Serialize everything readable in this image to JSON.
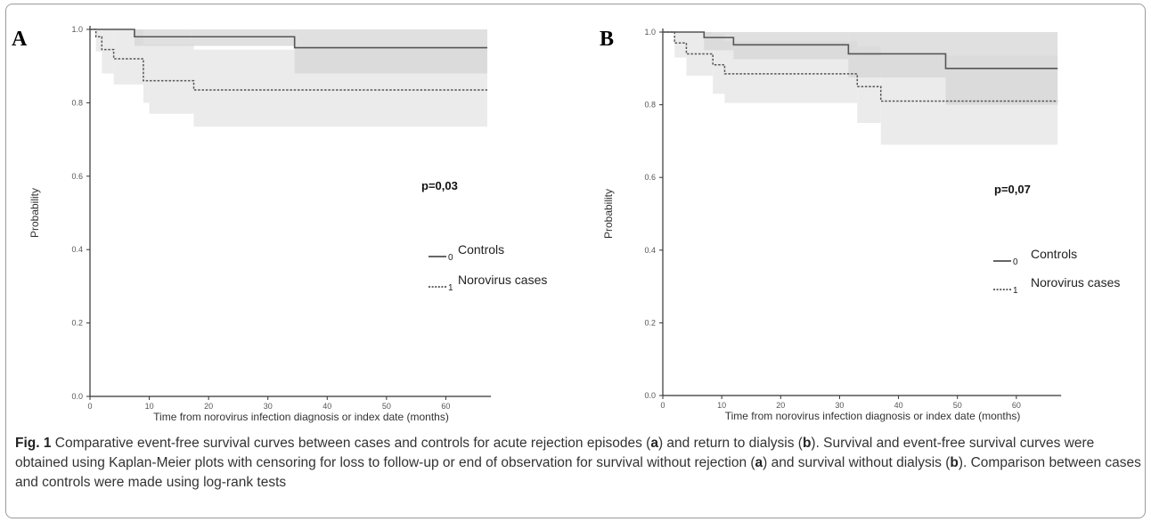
{
  "chart_data": [
    {
      "type": "line",
      "panel_label": "A",
      "xlabel": "Time from norovirus infection diagnosis or index date (months)",
      "ylabel": "Probability",
      "xlim": [
        0,
        70
      ],
      "ylim": [
        0,
        1
      ],
      "x_ticks": [
        "0",
        "10",
        "20",
        "30",
        "40",
        "50",
        "60"
      ],
      "y_ticks": [
        "0.0",
        "0.2",
        "0.4",
        "0.6",
        "0.8",
        "1.0"
      ],
      "annotation": "p=0,03",
      "series": [
        {
          "name": "Controls",
          "code": "0",
          "style": "solid",
          "color": "#555555",
          "steps": [
            [
              0,
              1.0
            ],
            [
              7.5,
              0.98
            ],
            [
              34.5,
              0.95
            ],
            [
              67,
              0.95
            ]
          ],
          "ci": [
            {
              "x0": 7.5,
              "x1": 17,
              "lo": 0.955,
              "hi": 1.0
            },
            {
              "x0": 17,
              "x1": 34.5,
              "lo": 0.955,
              "hi": 1.0
            },
            {
              "x0": 34.5,
              "x1": 67,
              "lo": 0.88,
              "hi": 1.0
            }
          ]
        },
        {
          "name": "Norovirus cases",
          "code": "1",
          "style": "dotted",
          "color": "#555555",
          "steps": [
            [
              0,
              1.0
            ],
            [
              1,
              0.98
            ],
            [
              2,
              0.945
            ],
            [
              4,
              0.92
            ],
            [
              9,
              0.86
            ],
            [
              17.5,
              0.835
            ],
            [
              67,
              0.835
            ]
          ],
          "ci": [
            {
              "x0": 1,
              "x1": 2,
              "lo": 0.94,
              "hi": 1.0
            },
            {
              "x0": 2,
              "x1": 4,
              "lo": 0.88,
              "hi": 1.0
            },
            {
              "x0": 4,
              "x1": 9,
              "lo": 0.85,
              "hi": 1.0
            },
            {
              "x0": 9,
              "x1": 10,
              "lo": 0.8,
              "hi": 0.96
            },
            {
              "x0": 10,
              "x1": 17.5,
              "lo": 0.77,
              "hi": 0.96
            },
            {
              "x0": 17.5,
              "x1": 67,
              "lo": 0.735,
              "hi": 0.945
            }
          ]
        }
      ]
    },
    {
      "type": "line",
      "panel_label": "B",
      "xlabel": "Time from norovirus infection diagnosis or index date (months)",
      "ylabel": "Probability",
      "xlim": [
        0,
        70
      ],
      "ylim": [
        0,
        1
      ],
      "x_ticks": [
        "0",
        "10",
        "20",
        "30",
        "40",
        "50",
        "60"
      ],
      "y_ticks": [
        "0.0",
        "0.2",
        "0.4",
        "0.6",
        "0.8",
        "1.0"
      ],
      "annotation": "p=0,07",
      "series": [
        {
          "name": "Controls",
          "code": "0",
          "style": "solid",
          "color": "#555555",
          "steps": [
            [
              0,
              1.0
            ],
            [
              7,
              0.985
            ],
            [
              12,
              0.965
            ],
            [
              31.5,
              0.94
            ],
            [
              48,
              0.9
            ],
            [
              67,
              0.9
            ]
          ],
          "ci": [
            {
              "x0": 7,
              "x1": 12,
              "lo": 0.95,
              "hi": 1.0
            },
            {
              "x0": 12,
              "x1": 31.5,
              "lo": 0.925,
              "hi": 1.0
            },
            {
              "x0": 31.5,
              "x1": 48,
              "lo": 0.875,
              "hi": 1.0
            },
            {
              "x0": 48,
              "x1": 67,
              "lo": 0.8,
              "hi": 1.0
            }
          ]
        },
        {
          "name": "Norovirus cases",
          "code": "1",
          "style": "dotted",
          "color": "#555555",
          "steps": [
            [
              0,
              1.0
            ],
            [
              2,
              0.97
            ],
            [
              4,
              0.94
            ],
            [
              8.5,
              0.91
            ],
            [
              10.5,
              0.885
            ],
            [
              33,
              0.85
            ],
            [
              37,
              0.81
            ],
            [
              67,
              0.81
            ]
          ],
          "ci": [
            {
              "x0": 2,
              "x1": 4,
              "lo": 0.93,
              "hi": 1.0
            },
            {
              "x0": 4,
              "x1": 8.5,
              "lo": 0.88,
              "hi": 1.0
            },
            {
              "x0": 8.5,
              "x1": 10.5,
              "lo": 0.83,
              "hi": 0.995
            },
            {
              "x0": 10.5,
              "x1": 33,
              "lo": 0.805,
              "hi": 0.975
            },
            {
              "x0": 33,
              "x1": 37,
              "lo": 0.75,
              "hi": 0.96
            },
            {
              "x0": 37,
              "x1": 67,
              "lo": 0.69,
              "hi": 0.935
            }
          ]
        }
      ]
    }
  ],
  "caption": {
    "fig_label": "Fig. 1",
    "parts": [
      " Comparative event-free survival curves between cases and controls for acute rejection episodes (",
      "a",
      ") and return to dialysis (",
      "b",
      "). Survival and event-free survival curves were obtained using Kaplan-Meier plots with censoring for loss to follow-up or end of observation for survival without rejection (",
      "a",
      ") and survival without dialysis (",
      "b",
      "). Comparison between cases and controls were made using log-rank tests"
    ]
  }
}
